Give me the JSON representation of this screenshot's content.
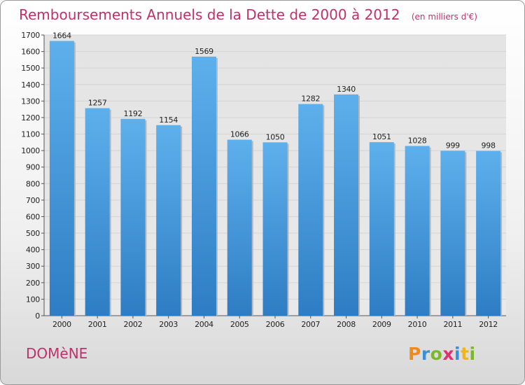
{
  "chart_data": {
    "type": "bar",
    "title": "Remboursements Annuels de la Dette de 2000 à 2012",
    "subtitle": "(en milliers d'€)",
    "xlabel": "",
    "ylabel": "",
    "categories": [
      "2000",
      "2001",
      "2002",
      "2003",
      "2004",
      "2005",
      "2006",
      "2007",
      "2008",
      "2009",
      "2010",
      "2011",
      "2012"
    ],
    "values": [
      1664,
      1257,
      1192,
      1154,
      1569,
      1066,
      1050,
      1282,
      1340,
      1051,
      1028,
      999,
      998
    ],
    "value_labels": [
      "1664",
      "1257",
      "1192",
      "1154",
      "1569",
      "1066",
      "1050",
      "1282",
      "1340",
      "1051",
      "1028",
      "999",
      "998"
    ],
    "ylim": [
      0,
      1700
    ],
    "yticks": [
      0,
      100,
      200,
      300,
      400,
      500,
      600,
      700,
      800,
      900,
      1000,
      1100,
      1200,
      1300,
      1400,
      1500,
      1600,
      1700
    ],
    "grid": true,
    "legend": "none"
  },
  "commune": "DOMèNE",
  "logo": {
    "letters": [
      "P",
      "r",
      "o",
      "x",
      "i",
      "t",
      "i"
    ],
    "colors": [
      "#f08a1e",
      "#3a8fd8",
      "#7ab82a",
      "#e03070",
      "#3a8fd8",
      "#f0b41e",
      "#7ab82a"
    ]
  },
  "colors": {
    "title": "#c0306a",
    "bar_light": "#5eb0ec",
    "bar_dark": "#2e7dc4",
    "grid": "#d4d4d4",
    "plot_bg": "#e6e6e6"
  }
}
